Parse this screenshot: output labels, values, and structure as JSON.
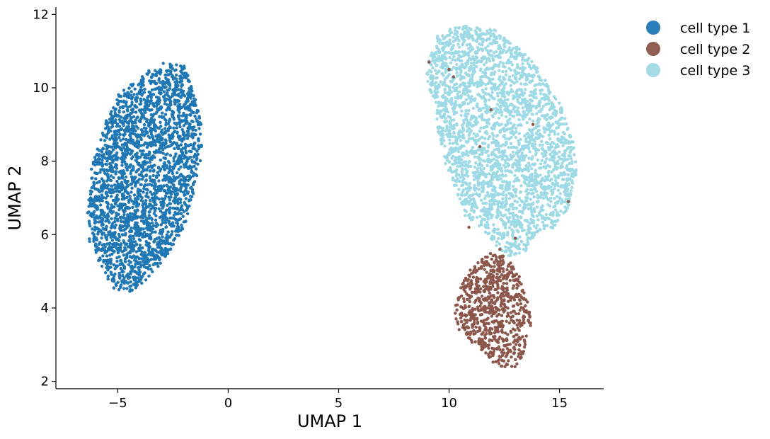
{
  "chart_data": {
    "type": "scatter",
    "title": "",
    "xlabel": "UMAP 1",
    "ylabel": "UMAP 2",
    "xlim": [
      -7.8,
      17.0
    ],
    "ylim": [
      1.8,
      12.2
    ],
    "xticks": [
      -5,
      0,
      5,
      10,
      15
    ],
    "xtick_labels": [
      "−5",
      "0",
      "5",
      "10",
      "15"
    ],
    "yticks": [
      2,
      4,
      6,
      8,
      10,
      12
    ],
    "ytick_labels": [
      "2",
      "4",
      "6",
      "8",
      "10",
      "12"
    ],
    "grid": false,
    "legend_position": "outside top-right",
    "series": [
      {
        "name": "cell type 1",
        "color": "#1f77b4",
        "approx_count": 2600,
        "cluster": {
          "x_range": [
            -6.6,
            -1.1
          ],
          "y_range": [
            4.3,
            10.8
          ]
        },
        "outline": [
          [
            -6.4,
            6.5
          ],
          [
            -6.2,
            7.8
          ],
          [
            -5.6,
            9.0
          ],
          [
            -4.9,
            9.9
          ],
          [
            -4.0,
            10.3
          ],
          [
            -3.0,
            10.7
          ],
          [
            -2.0,
            10.6
          ],
          [
            -1.6,
            10.0
          ],
          [
            -1.2,
            9.0
          ],
          [
            -1.2,
            8.2
          ],
          [
            -1.6,
            7.0
          ],
          [
            -2.0,
            6.2
          ],
          [
            -2.8,
            5.4
          ],
          [
            -3.6,
            4.8
          ],
          [
            -4.5,
            4.4
          ],
          [
            -5.2,
            4.5
          ],
          [
            -5.8,
            5.2
          ],
          [
            -6.3,
            5.8
          ]
        ]
      },
      {
        "name": "cell type 2",
        "color": "#8c564b",
        "approx_count": 700,
        "cluster": {
          "x_range": [
            10.1,
            13.9
          ],
          "y_range": [
            2.4,
            5.6
          ]
        },
        "outline": [
          [
            10.2,
            3.9
          ],
          [
            10.5,
            4.6
          ],
          [
            11.0,
            5.1
          ],
          [
            11.8,
            5.5
          ],
          [
            12.6,
            5.4
          ],
          [
            13.1,
            5.0
          ],
          [
            13.5,
            4.3
          ],
          [
            13.8,
            3.6
          ],
          [
            13.5,
            2.8
          ],
          [
            13.0,
            2.4
          ],
          [
            12.2,
            2.4
          ],
          [
            11.5,
            2.8
          ],
          [
            10.8,
            3.2
          ],
          [
            10.3,
            3.5
          ]
        ]
      },
      {
        "name": "cell type 3",
        "color": "#9edae5",
        "approx_count": 2700,
        "cluster": {
          "x_range": [
            8.9,
            15.9
          ],
          "y_range": [
            5.2,
            11.7
          ]
        },
        "outline": [
          [
            9.0,
            10.6
          ],
          [
            9.5,
            11.5
          ],
          [
            10.5,
            11.7
          ],
          [
            12.0,
            11.6
          ],
          [
            13.2,
            11.1
          ],
          [
            14.2,
            10.4
          ],
          [
            15.0,
            9.6
          ],
          [
            15.6,
            8.6
          ],
          [
            15.8,
            7.8
          ],
          [
            15.5,
            6.8
          ],
          [
            14.8,
            6.2
          ],
          [
            14.0,
            6.0
          ],
          [
            13.4,
            5.5
          ],
          [
            12.7,
            5.4
          ],
          [
            12.1,
            5.7
          ],
          [
            11.6,
            6.1
          ],
          [
            10.8,
            6.4
          ],
          [
            10.3,
            7.2
          ],
          [
            9.8,
            8.0
          ],
          [
            9.5,
            8.8
          ],
          [
            9.3,
            9.6
          ],
          [
            9.0,
            10.2
          ]
        ]
      }
    ]
  }
}
